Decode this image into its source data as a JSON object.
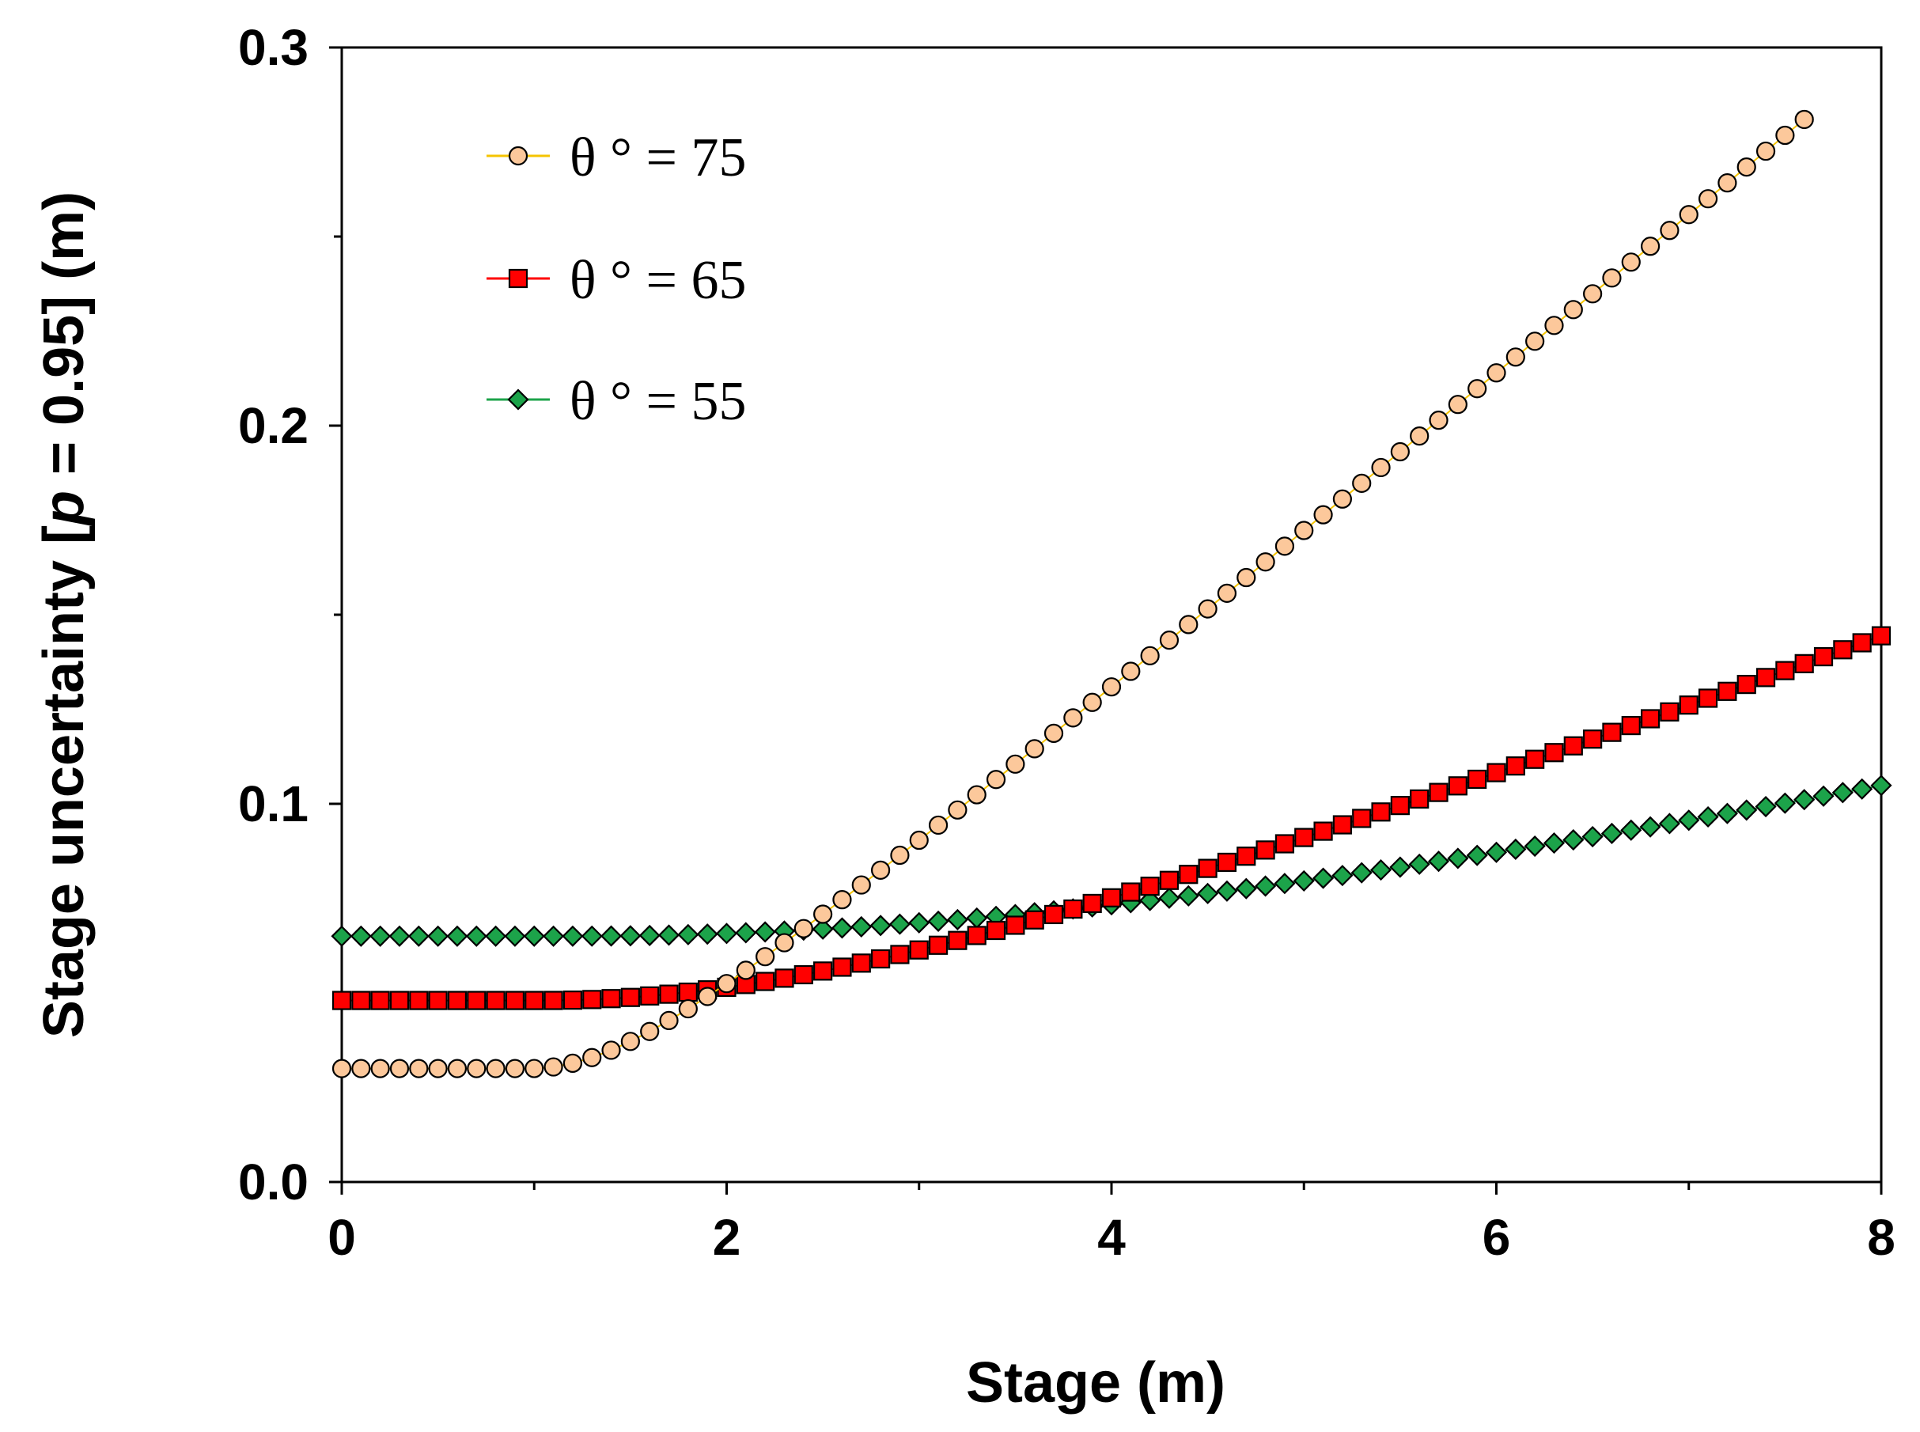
{
  "chart_data": {
    "type": "scatter",
    "title": "",
    "xlabel": "Stage (m)",
    "ylabel_parts": [
      "Stage uncertainty  [",
      "p",
      " = 0.95] (m)"
    ],
    "xlim": [
      0,
      8
    ],
    "ylim": [
      0,
      0.3
    ],
    "xticks_major": [
      0,
      2,
      4,
      6,
      8
    ],
    "xtick_labels": [
      "0",
      "2",
      "4",
      "6",
      "8"
    ],
    "xticks_minor": [
      1,
      3,
      5,
      7
    ],
    "yticks_major": [
      0.0,
      0.1,
      0.2,
      0.3
    ],
    "ytick_labels": [
      "0.0",
      "0.1",
      "0.2",
      "0.3"
    ],
    "yticks_minor": [
      0.05,
      0.15,
      0.25
    ],
    "grid": false,
    "legend_position": "top-left",
    "x_start": 0,
    "x_step": 0.1,
    "series": [
      {
        "name": "θ ° =  75",
        "legend_prefix": "θ ° =  ",
        "legend_value": "75",
        "marker": "circle",
        "color": "#fcc89b",
        "line_color": "#f5c400",
        "model": {
          "a": 0.03,
          "b": 0.0422,
          "c": 0.98
        },
        "x_max": 7.6
      },
      {
        "name": "θ ° =  65",
        "legend_prefix": "θ ° =  ",
        "legend_value": "65",
        "marker": "square",
        "color": "#ff0000",
        "line_color": "#ff0000",
        "model": {
          "a": 0.048,
          "b": 0.0196,
          "c": 1.05
        },
        "x_max": 8.0
      },
      {
        "name": "θ ° =  55",
        "legend_prefix": "θ ° =  ",
        "legend_value": "55",
        "marker": "diamond",
        "color": "#1ca34a",
        "line_color": "#1ca34a",
        "model": {
          "a": 0.065,
          "b": 0.0121,
          "c": 1.2
        },
        "x_max": 8.0
      }
    ]
  }
}
